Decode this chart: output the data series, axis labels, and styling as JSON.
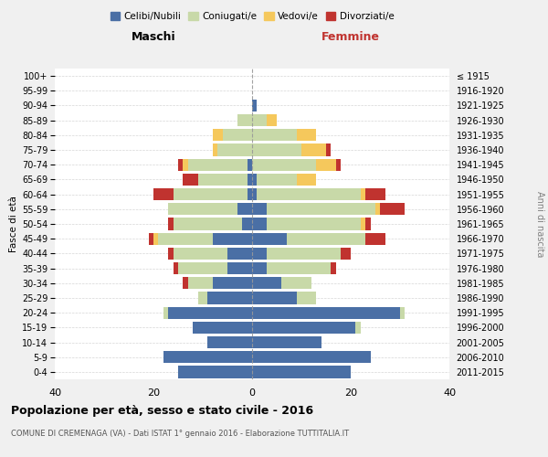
{
  "age_groups": [
    "0-4",
    "5-9",
    "10-14",
    "15-19",
    "20-24",
    "25-29",
    "30-34",
    "35-39",
    "40-44",
    "45-49",
    "50-54",
    "55-59",
    "60-64",
    "65-69",
    "70-74",
    "75-79",
    "80-84",
    "85-89",
    "90-94",
    "95-99",
    "100+"
  ],
  "birth_years": [
    "2011-2015",
    "2006-2010",
    "2001-2005",
    "1996-2000",
    "1991-1995",
    "1986-1990",
    "1981-1985",
    "1976-1980",
    "1971-1975",
    "1966-1970",
    "1961-1965",
    "1956-1960",
    "1951-1955",
    "1946-1950",
    "1941-1945",
    "1936-1940",
    "1931-1935",
    "1926-1930",
    "1921-1925",
    "1916-1920",
    "≤ 1915"
  ],
  "colors": {
    "celibe": "#4a6fa5",
    "coniugato": "#c8d9a8",
    "vedovo": "#f5c85c",
    "divorziato": "#c0332f"
  },
  "males": {
    "celibe": [
      15,
      18,
      9,
      12,
      17,
      9,
      8,
      5,
      5,
      8,
      2,
      3,
      1,
      1,
      1,
      0,
      0,
      0,
      0,
      0,
      0
    ],
    "coniugato": [
      0,
      0,
      0,
      0,
      1,
      2,
      5,
      10,
      11,
      11,
      14,
      14,
      15,
      10,
      12,
      7,
      6,
      3,
      0,
      0,
      0
    ],
    "vedovo": [
      0,
      0,
      0,
      0,
      0,
      0,
      0,
      0,
      0,
      1,
      0,
      0,
      0,
      0,
      1,
      1,
      2,
      0,
      0,
      0,
      0
    ],
    "divorziato": [
      0,
      0,
      0,
      0,
      0,
      0,
      1,
      1,
      1,
      1,
      1,
      0,
      4,
      3,
      1,
      0,
      0,
      0,
      0,
      0,
      0
    ]
  },
  "females": {
    "nubile": [
      20,
      24,
      14,
      21,
      30,
      9,
      6,
      3,
      3,
      7,
      3,
      3,
      1,
      1,
      0,
      0,
      0,
      0,
      1,
      0,
      0
    ],
    "coniugata": [
      0,
      0,
      0,
      1,
      1,
      4,
      6,
      13,
      15,
      16,
      19,
      22,
      21,
      8,
      13,
      10,
      9,
      3,
      0,
      0,
      0
    ],
    "vedova": [
      0,
      0,
      0,
      0,
      0,
      0,
      0,
      0,
      0,
      0,
      1,
      1,
      1,
      4,
      4,
      5,
      4,
      2,
      0,
      0,
      0
    ],
    "divorziata": [
      0,
      0,
      0,
      0,
      0,
      0,
      0,
      1,
      2,
      4,
      1,
      5,
      4,
      0,
      1,
      1,
      0,
      0,
      0,
      0,
      0
    ]
  },
  "xlim": 40,
  "title": "Popolazione per età, sesso e stato civile - 2016",
  "subtitle": "COMUNE DI CREMENAGA (VA) - Dati ISTAT 1° gennaio 2016 - Elaborazione TUTTITALIA.IT",
  "xlabel_left": "Maschi",
  "xlabel_right": "Femmine",
  "ylabel_left": "Fasce di età",
  "ylabel_right": "Anni di nascita",
  "legend_labels": [
    "Celibi/Nubili",
    "Coniugati/e",
    "Vedovi/e",
    "Divorziati/e"
  ],
  "bg_color": "#f0f0f0",
  "plot_bg": "#ffffff"
}
